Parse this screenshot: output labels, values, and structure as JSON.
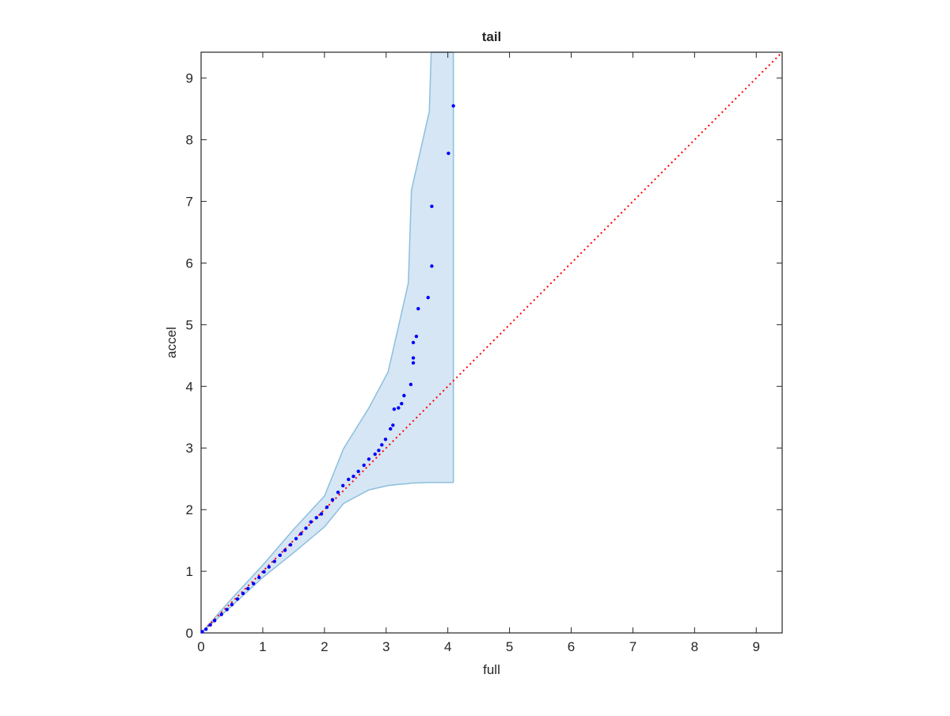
{
  "chart_data": {
    "type": "scatter",
    "title": "tail",
    "xlabel": "full",
    "ylabel": "accel",
    "xlim": [
      0,
      9.42
    ],
    "ylim": [
      0,
      9.42
    ],
    "xticks": [
      0,
      1,
      2,
      3,
      4,
      5,
      6,
      7,
      8,
      9
    ],
    "yticks": [
      0,
      1,
      2,
      3,
      4,
      5,
      6,
      7,
      8,
      9
    ],
    "series": [
      {
        "color": "#0000ff",
        "x": [
          0.02,
          0.08,
          0.15,
          0.22,
          0.33,
          0.42,
          0.5,
          0.59,
          0.68,
          0.76,
          0.85,
          0.94,
          1.02,
          1.1,
          1.19,
          1.28,
          1.36,
          1.45,
          1.54,
          1.62,
          1.7,
          1.78,
          1.87,
          1.95,
          2.04,
          2.13,
          2.22,
          2.3,
          2.39,
          2.47,
          2.55,
          2.64,
          2.72,
          2.82,
          2.88,
          2.93,
          2.99,
          3.07,
          3.11,
          3.13,
          3.2,
          3.25,
          3.29,
          3.4,
          3.44,
          3.44,
          3.44,
          3.49,
          3.52,
          3.68,
          3.74,
          3.74,
          4.01,
          4.09
        ],
        "values": [
          0.02,
          0.06,
          0.13,
          0.2,
          0.3,
          0.38,
          0.46,
          0.55,
          0.64,
          0.72,
          0.8,
          0.9,
          0.99,
          1.07,
          1.16,
          1.26,
          1.34,
          1.43,
          1.53,
          1.61,
          1.7,
          1.8,
          1.87,
          1.93,
          2.04,
          2.16,
          2.28,
          2.39,
          2.49,
          2.54,
          2.62,
          2.72,
          2.82,
          2.9,
          2.96,
          3.05,
          3.14,
          3.31,
          3.37,
          3.63,
          3.65,
          3.72,
          3.85,
          4.03,
          4.38,
          4.46,
          4.71,
          4.81,
          5.26,
          5.44,
          5.95,
          6.92,
          7.78,
          8.55
        ]
      }
    ],
    "reference": {
      "color": "#ff0000",
      "x": [
        0,
        9.42
      ],
      "values": [
        0,
        9.42
      ]
    },
    "band": {
      "color": "#d6e6f4",
      "edge_color": "#8cbfdd",
      "x": [
        0,
        0.5,
        1,
        1.5,
        2,
        2.31,
        2.72,
        3.03,
        3.2,
        3.36,
        3.41,
        3.7,
        3.73,
        4.09
      ],
      "upper": [
        0,
        0.56,
        1.1,
        1.68,
        2.22,
        2.99,
        3.65,
        4.23,
        4.97,
        5.68,
        7.18,
        8.46,
        9.42,
        9.42
      ],
      "lower": [
        0,
        0.44,
        0.9,
        1.3,
        1.72,
        2.1,
        2.32,
        2.39,
        2.41,
        2.42,
        2.43,
        2.44,
        2.44,
        2.44
      ]
    }
  }
}
